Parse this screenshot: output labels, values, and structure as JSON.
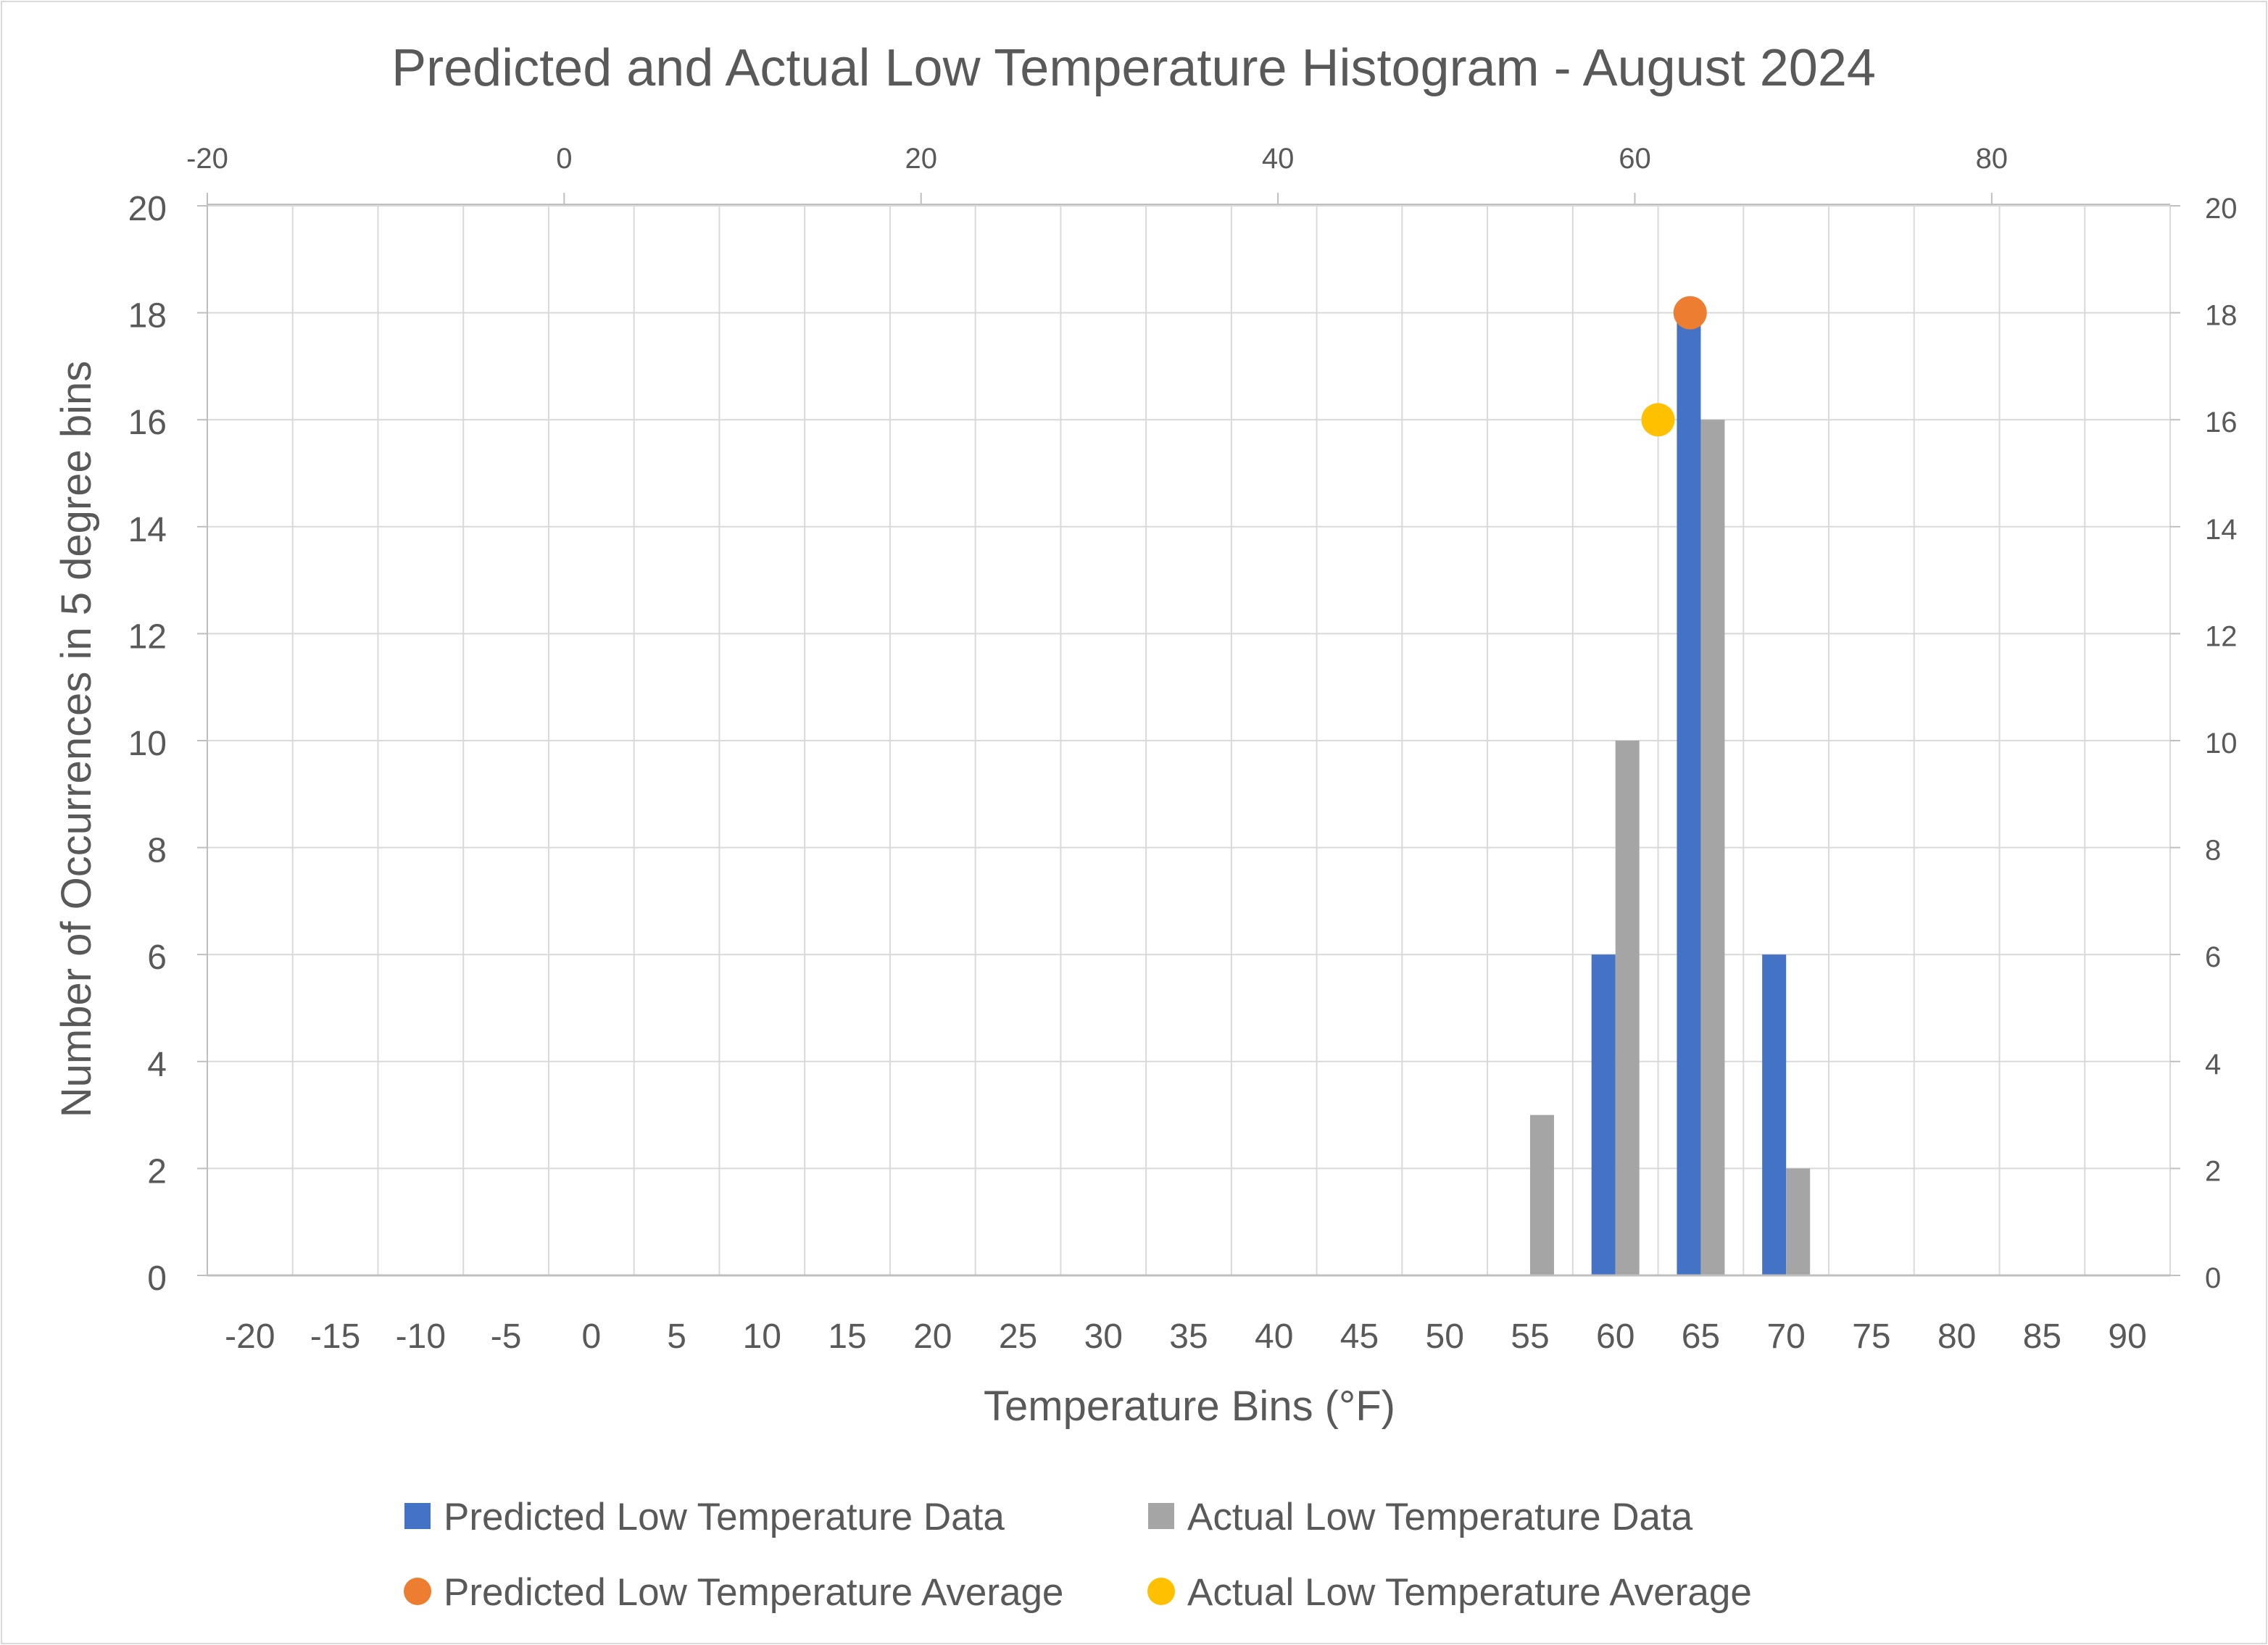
{
  "chart_data": {
    "type": "bar",
    "title": "Predicted and Actual Low Temperature Histogram - August 2024",
    "xlabel": "Temperature Bins (°F)",
    "ylabel": "Number of Occurrences in 5 degree bins",
    "categories": [
      "-20",
      "-15",
      "-10",
      "-5",
      "0",
      "5",
      "10",
      "15",
      "20",
      "25",
      "30",
      "35",
      "40",
      "45",
      "50",
      "55",
      "60",
      "65",
      "70",
      "75",
      "80",
      "85",
      "90"
    ],
    "series": [
      {
        "name": "Predicted Low Temperature Data",
        "color": "#4472C4",
        "values": [
          0,
          0,
          0,
          0,
          0,
          0,
          0,
          0,
          0,
          0,
          0,
          0,
          0,
          0,
          0,
          0,
          6,
          18,
          6,
          0,
          0,
          0,
          0
        ]
      },
      {
        "name": "Actual Low Temperature Data",
        "color": "#A5A5A5",
        "values": [
          0,
          0,
          0,
          0,
          0,
          0,
          0,
          0,
          0,
          0,
          0,
          0,
          0,
          0,
          0,
          3,
          10,
          16,
          2,
          0,
          0,
          0,
          0
        ]
      }
    ],
    "points": [
      {
        "name": "Predicted Low Temperature Average",
        "color": "#ED7D31",
        "x": 63.1,
        "y": 18
      },
      {
        "name": "Actual Low Temperature Average",
        "color": "#FFC000",
        "x": 61.3,
        "y": 16
      }
    ],
    "ylim": [
      0,
      20
    ],
    "y_ticks": [
      "0",
      "2",
      "4",
      "6",
      "8",
      "10",
      "12",
      "14",
      "16",
      "18",
      "20"
    ],
    "y2_ticks": [
      "0",
      "2",
      "4",
      "6",
      "8",
      "10",
      "12",
      "14",
      "16",
      "18",
      "20"
    ],
    "x2_range": [
      -20,
      90
    ],
    "x2_ticks": [
      "-20",
      "0",
      "20",
      "40",
      "60",
      "80"
    ],
    "legend_position": "bottom",
    "grid": true
  }
}
